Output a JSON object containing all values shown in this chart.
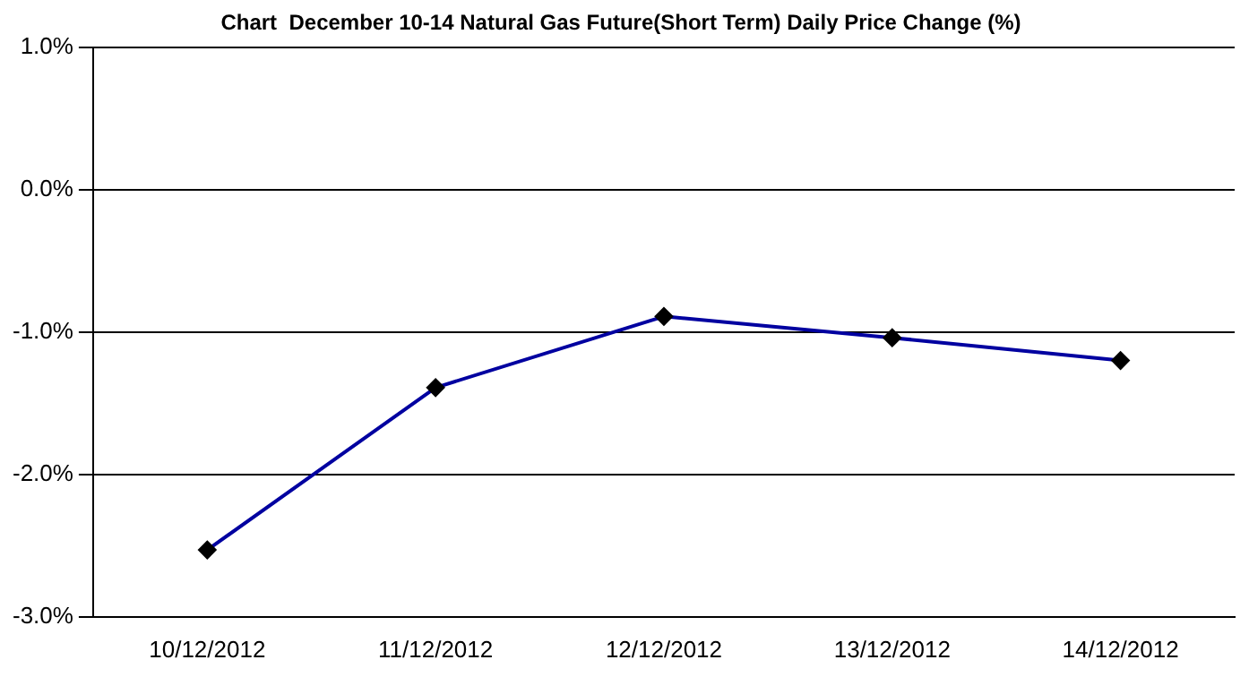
{
  "chart_data": {
    "type": "line",
    "title": "Chart  December 10-14 Natural Gas Future(Short Term) Daily Price Change (%)",
    "categories": [
      "10/12/2012",
      "11/12/2012",
      "12/12/2012",
      "13/12/2012",
      "14/12/2012"
    ],
    "series": [
      {
        "color": "#0000a0",
        "values": [
          -2.53,
          -1.39,
          -0.89,
          -1.04,
          -1.2
        ]
      }
    ],
    "ylim": [
      -3,
      1
    ],
    "yticks": [
      {
        "value": -3,
        "label": "-3.0%"
      },
      {
        "value": -2,
        "label": "-2.0%"
      },
      {
        "value": -1,
        "label": "-1.0%"
      },
      {
        "value": 0,
        "label": "0.0%"
      },
      {
        "value": 1,
        "label": "1.0%"
      }
    ],
    "grid": "y",
    "legend": false,
    "marker": "diamond",
    "line_style": "solid"
  }
}
